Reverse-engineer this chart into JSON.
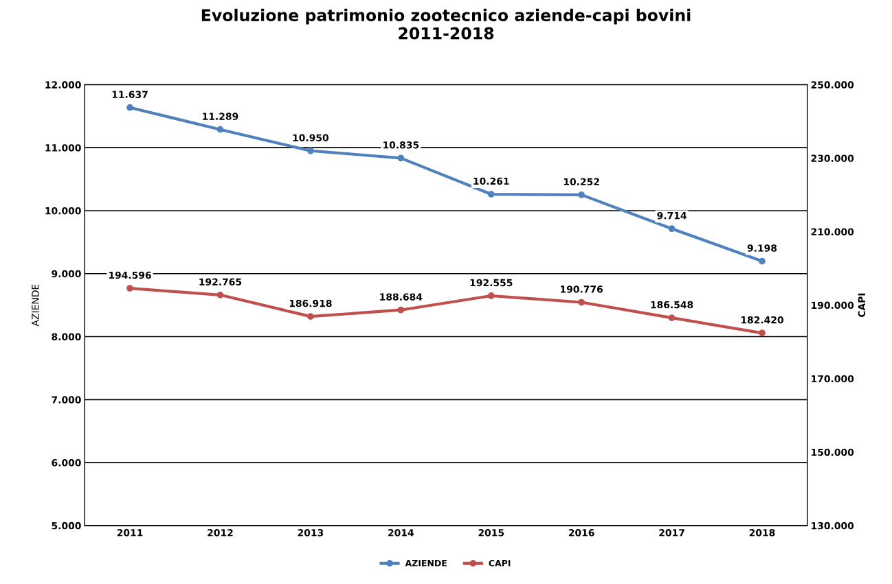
{
  "chart_data": {
    "type": "line",
    "title": "Evoluzione patrimonio zootecnico aziende-capi bovini\n2011-2018",
    "categories": [
      "2011",
      "2012",
      "2013",
      "2014",
      "2015",
      "2016",
      "2017",
      "2018"
    ],
    "series": [
      {
        "name": "AZIENDE",
        "color": "#4f81bd",
        "values": [
          11637,
          11289,
          10950,
          10835,
          10261,
          10252,
          9714,
          9198
        ],
        "value_labels": [
          "11.637",
          "11.289",
          "10.950",
          "10.835",
          "10.261",
          "10.252",
          "9.714",
          "9.198"
        ]
      },
      {
        "name": "CAPI",
        "color": "#c0504d",
        "axis": "y2",
        "values": [
          194596,
          192765,
          186918,
          188684,
          192555,
          190776,
          186548,
          182420
        ],
        "value_labels": [
          "194.596",
          "192.765",
          "186.918",
          "188.684",
          "192.555",
          "190.776",
          "186.548",
          "182.420"
        ]
      }
    ],
    "ylabel": "AZIENDE",
    "y2label": "CAPI",
    "ylim": [
      5000,
      12000
    ],
    "yticks": [
      {
        "value": 5000,
        "label": "5.000"
      },
      {
        "value": 6000,
        "label": "6.000"
      },
      {
        "value": 7000,
        "label": "7.000"
      },
      {
        "value": 8000,
        "label": "8.000"
      },
      {
        "value": 9000,
        "label": "9.000"
      },
      {
        "value": 10000,
        "label": "10.000"
      },
      {
        "value": 11000,
        "label": "11.000"
      },
      {
        "value": 12000,
        "label": "12.000"
      }
    ],
    "y2lim": [
      130000,
      250000
    ],
    "y2ticks": [
      {
        "value": 130000,
        "label": "130.000"
      },
      {
        "value": 150000,
        "label": "150.000"
      },
      {
        "value": 170000,
        "label": "170.000"
      },
      {
        "value": 190000,
        "label": "190.000"
      },
      {
        "value": 210000,
        "label": "210.000"
      },
      {
        "value": 230000,
        "label": "230.000"
      },
      {
        "value": 250000,
        "label": "250.000"
      }
    ],
    "grid": "y",
    "legend": "bottom",
    "marker": "circle",
    "line_style": "solid"
  }
}
